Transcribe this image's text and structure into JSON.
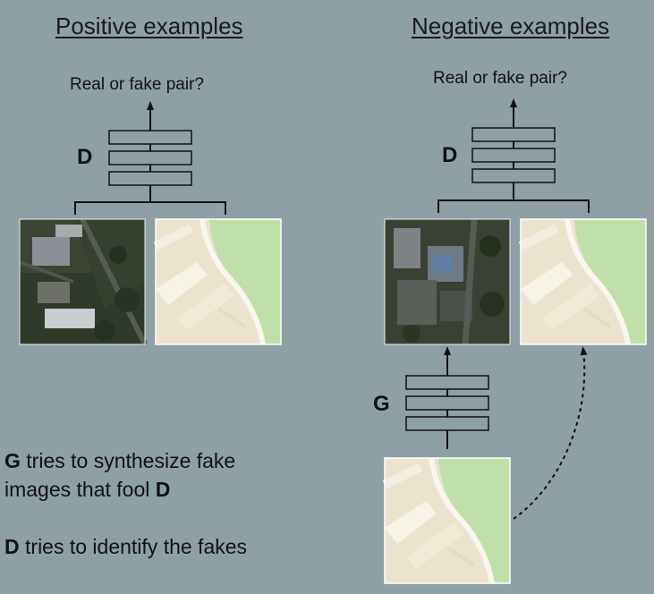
{
  "positive": {
    "heading": "Positive examples",
    "question": "Real or fake pair?",
    "network_label": "D"
  },
  "negative": {
    "heading": "Negative examples",
    "question": "Real or fake pair?",
    "discriminator_label": "D",
    "generator_label": "G"
  },
  "caption": {
    "line1_bold": "G",
    "line1_rest": " tries to synthesize fake",
    "line2_rest": "images that fool ",
    "line2_bold": "D",
    "line3_bold": "D",
    "line3_rest": " tries to identify the fakes"
  },
  "colors": {
    "background": "#8f9fa6",
    "map_land": "#ebe3cd",
    "map_park": "#bfe0a8",
    "map_road": "#f8f6ef",
    "line": "#111111"
  }
}
